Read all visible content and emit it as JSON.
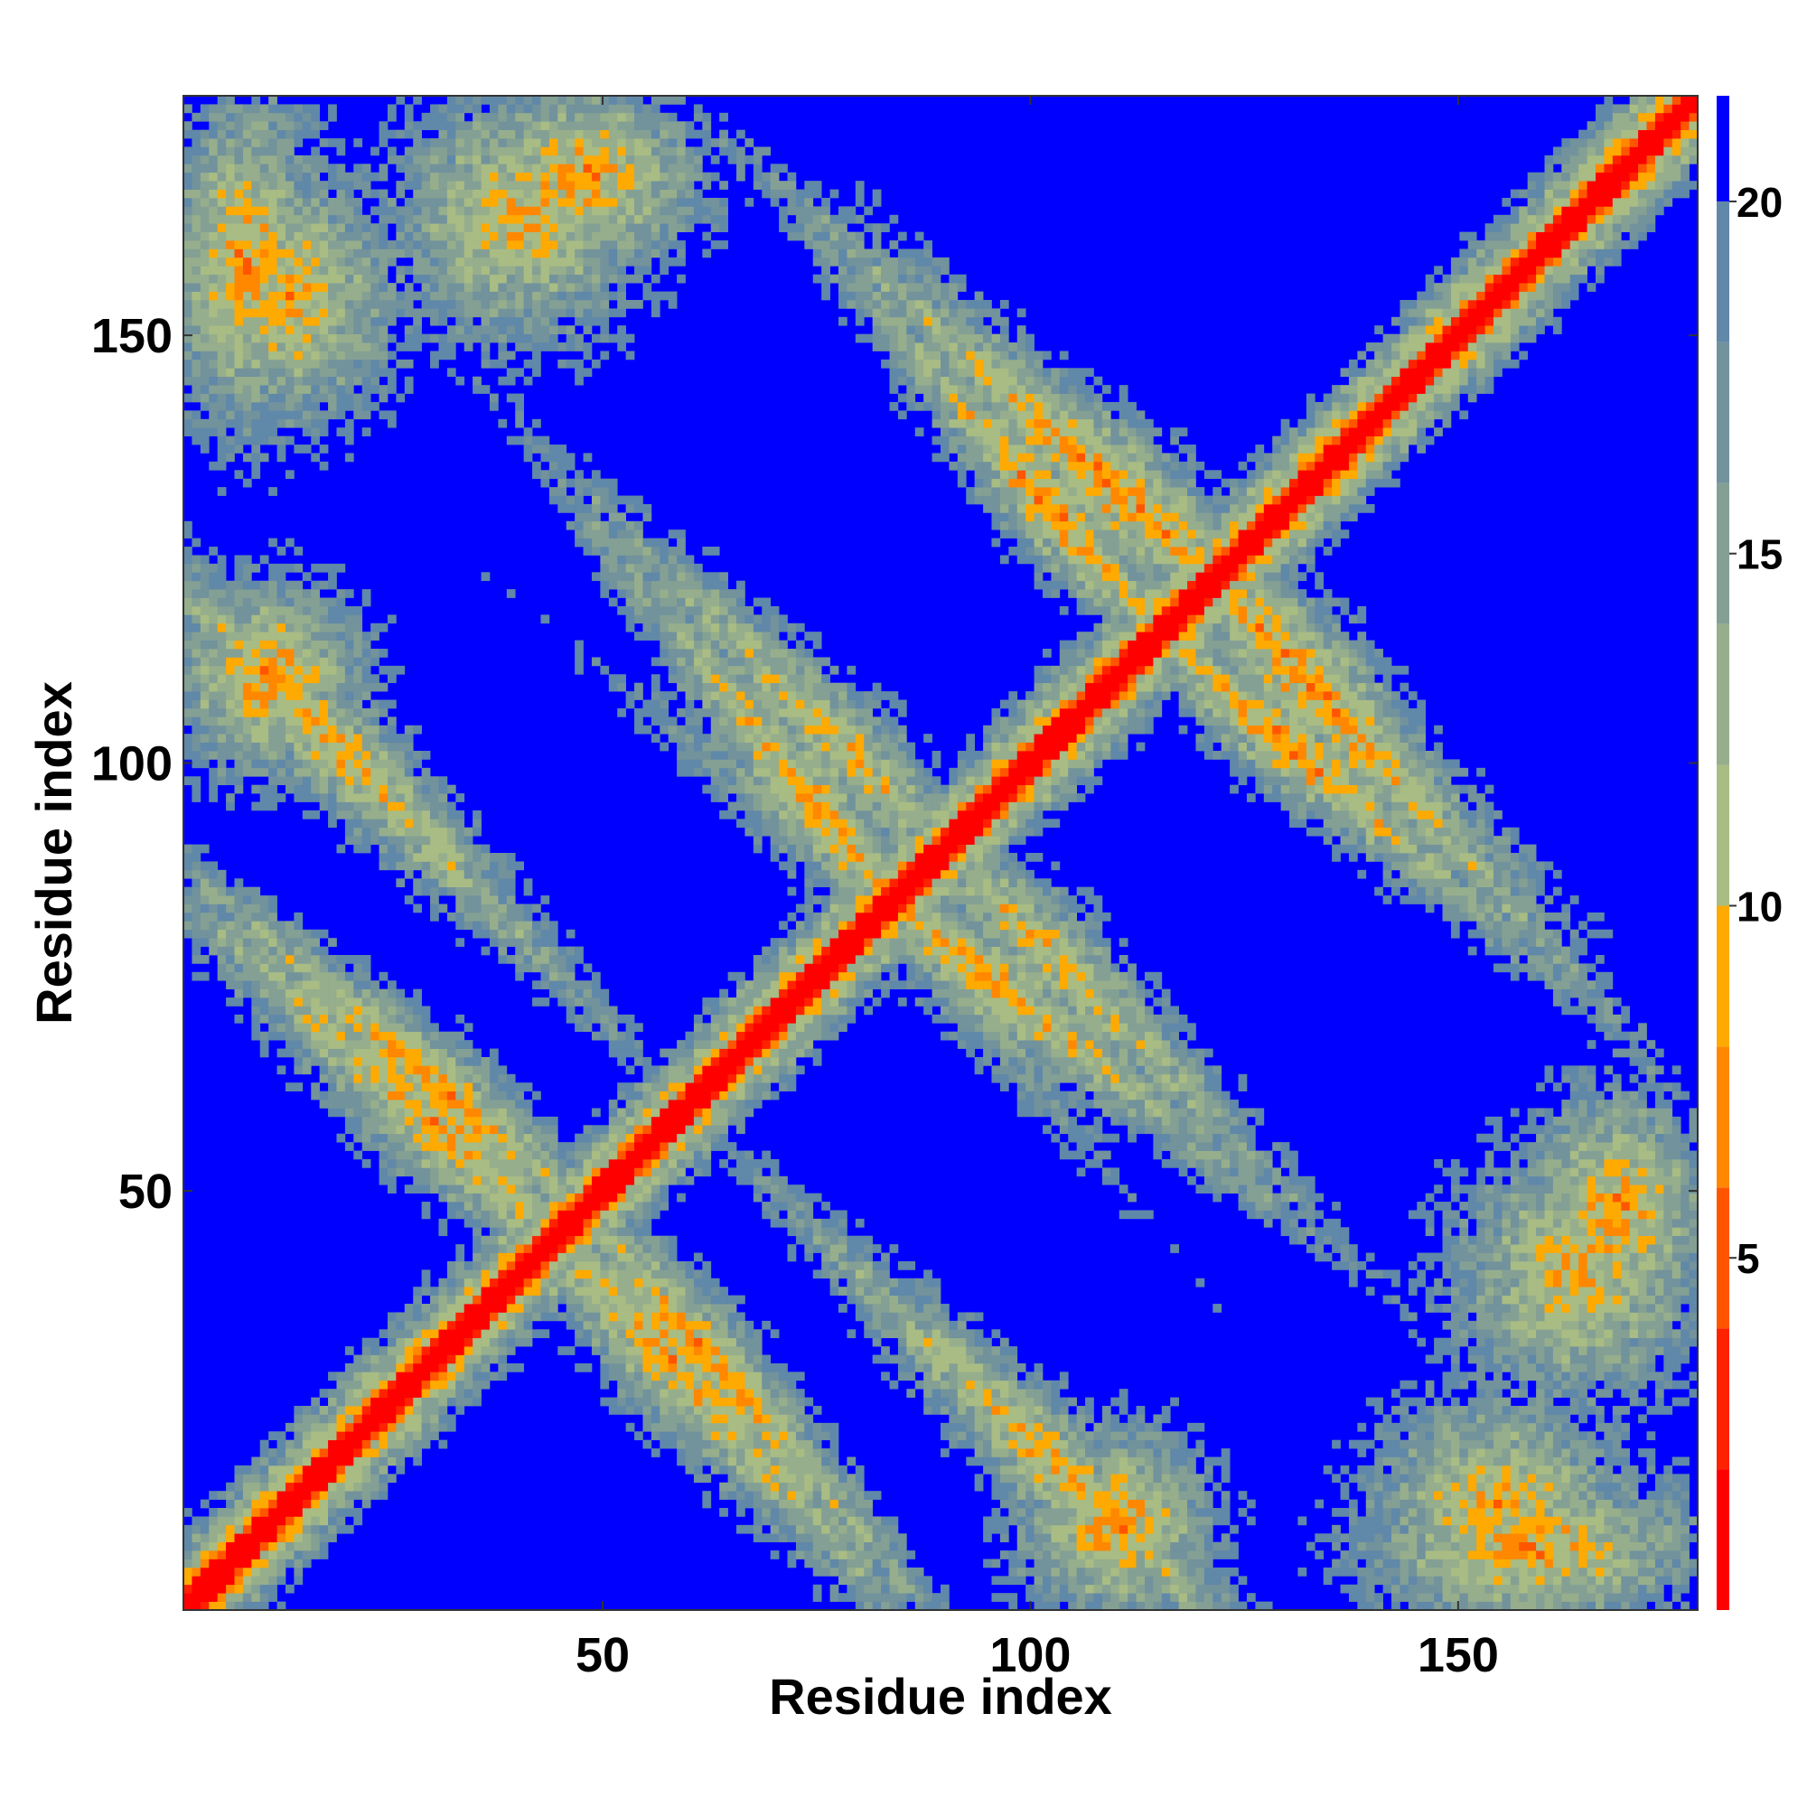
{
  "chart_data": {
    "type": "heatmap",
    "title": "",
    "xlabel": "Residue index",
    "ylabel": "Residue index",
    "xlim": [
      1,
      178
    ],
    "ylim": [
      1,
      178
    ],
    "n_residues": 178,
    "x_ticks": [
      50,
      100,
      150
    ],
    "y_ticks": [
      50,
      100,
      150
    ],
    "colorbar": {
      "range": [
        0,
        21.5
      ],
      "ticks": [
        5,
        10,
        15,
        20
      ],
      "levels": [
        {
          "from": 0,
          "to": 2,
          "color": "#ff0000"
        },
        {
          "from": 2,
          "to": 4,
          "color": "#ff2200"
        },
        {
          "from": 4,
          "to": 6,
          "color": "#ff5500"
        },
        {
          "from": 6,
          "to": 8,
          "color": "#ff8800"
        },
        {
          "from": 8,
          "to": 10,
          "color": "#ffaa00"
        },
        {
          "from": 10,
          "to": 12,
          "color": "#a8bc84"
        },
        {
          "from": 12,
          "to": 14,
          "color": "#96ae8c"
        },
        {
          "from": 14,
          "to": 16,
          "color": "#84a094"
        },
        {
          "from": 16,
          "to": 18,
          "color": "#72929c"
        },
        {
          "from": 18,
          "to": 20,
          "color": "#6088a8"
        },
        {
          "from": 20,
          "to": 21.5,
          "color": "#0000ff"
        }
      ]
    },
    "contact_regions": [
      {
        "x": [
          1,
          178
        ],
        "y": [
          1,
          178
        ],
        "pattern": "main diagonal",
        "min_value": 0
      },
      {
        "x": [
          1,
          15
        ],
        "y": [
          140,
          178
        ],
        "pattern": "block",
        "min_value": 7
      },
      {
        "x": [
          1,
          35
        ],
        "y": [
          85,
          120
        ],
        "pattern": "anti-diagonal band",
        "min_value": 8
      },
      {
        "x": [
          10,
          50
        ],
        "y": [
          40,
          75
        ],
        "pattern": "anti-diagonal band",
        "min_value": 8
      },
      {
        "x": [
          50,
          75
        ],
        "y": [
          15,
          45
        ],
        "pattern": "anti-diagonal band",
        "min_value": 7
      },
      {
        "x": [
          60,
          90
        ],
        "y": [
          75,
          115
        ],
        "pattern": "anti-diagonal band",
        "min_value": 8
      },
      {
        "x": [
          85,
          120
        ],
        "y": [
          60,
          95
        ],
        "pattern": "anti-diagonal band",
        "min_value": 9
      },
      {
        "x": [
          90,
          115
        ],
        "y": [
          115,
          145
        ],
        "pattern": "anti-diagonal band",
        "min_value": 7
      },
      {
        "x": [
          115,
          150
        ],
        "y": [
          90,
          130
        ],
        "pattern": "anti-diagonal band",
        "min_value": 7
      },
      {
        "x": [
          150,
          178
        ],
        "y": [
          25,
          55
        ],
        "pattern": "block",
        "min_value": 8
      },
      {
        "x": [
          140,
          170
        ],
        "y": [
          1,
          25
        ],
        "pattern": "block",
        "min_value": 8
      },
      {
        "x": [
          35,
          60
        ],
        "y": [
          160,
          178
        ],
        "pattern": "block",
        "min_value": 7
      },
      {
        "x": [
          100,
          120
        ],
        "y": [
          1,
          20
        ],
        "pattern": "block",
        "min_value": 7
      }
    ]
  }
}
